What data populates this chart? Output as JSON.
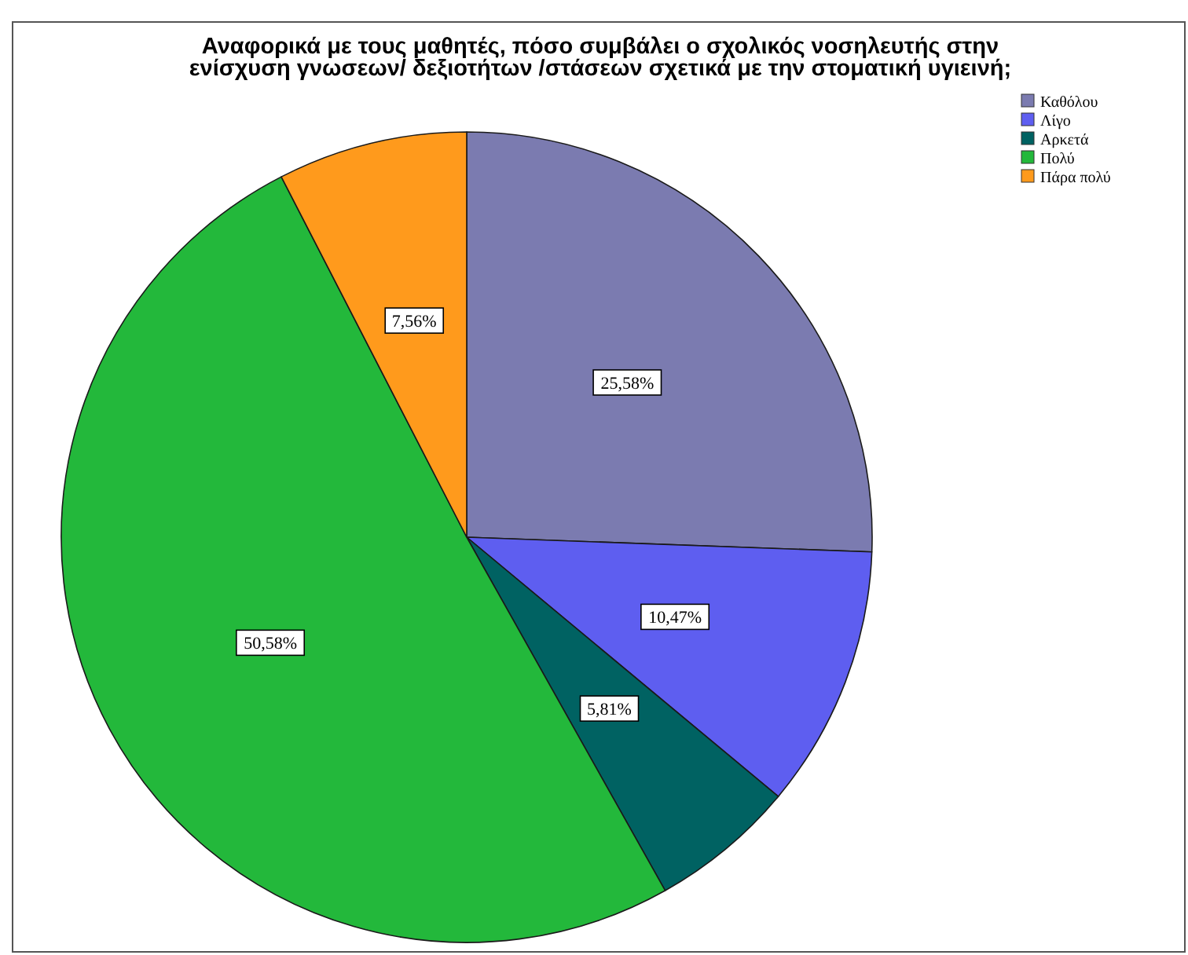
{
  "chart_data": {
    "type": "pie",
    "title": "Αναφορικά με τους μαθητές, πόσο συμβάλει ο σχολικός νοσηλευτής στην\nενίσχυση γνωσεων/ δεξιοτήτων /στάσεων σχετικά με την στοματική υγιεινή;",
    "categories": [
      "Καθόλου",
      "Λίγο",
      "Αρκετά",
      "Πολύ",
      "Πάρα πολύ"
    ],
    "values": [
      25.58,
      10.47,
      5.81,
      50.58,
      7.56
    ],
    "colors": [
      "#7b7bb0",
      "#5e5ef0",
      "#006262",
      "#23b83b",
      "#ff9a1c"
    ],
    "value_labels": [
      "25,58%",
      "10,47%",
      "5,81%",
      "50,58%",
      "7,56%"
    ],
    "legend": "top right"
  }
}
